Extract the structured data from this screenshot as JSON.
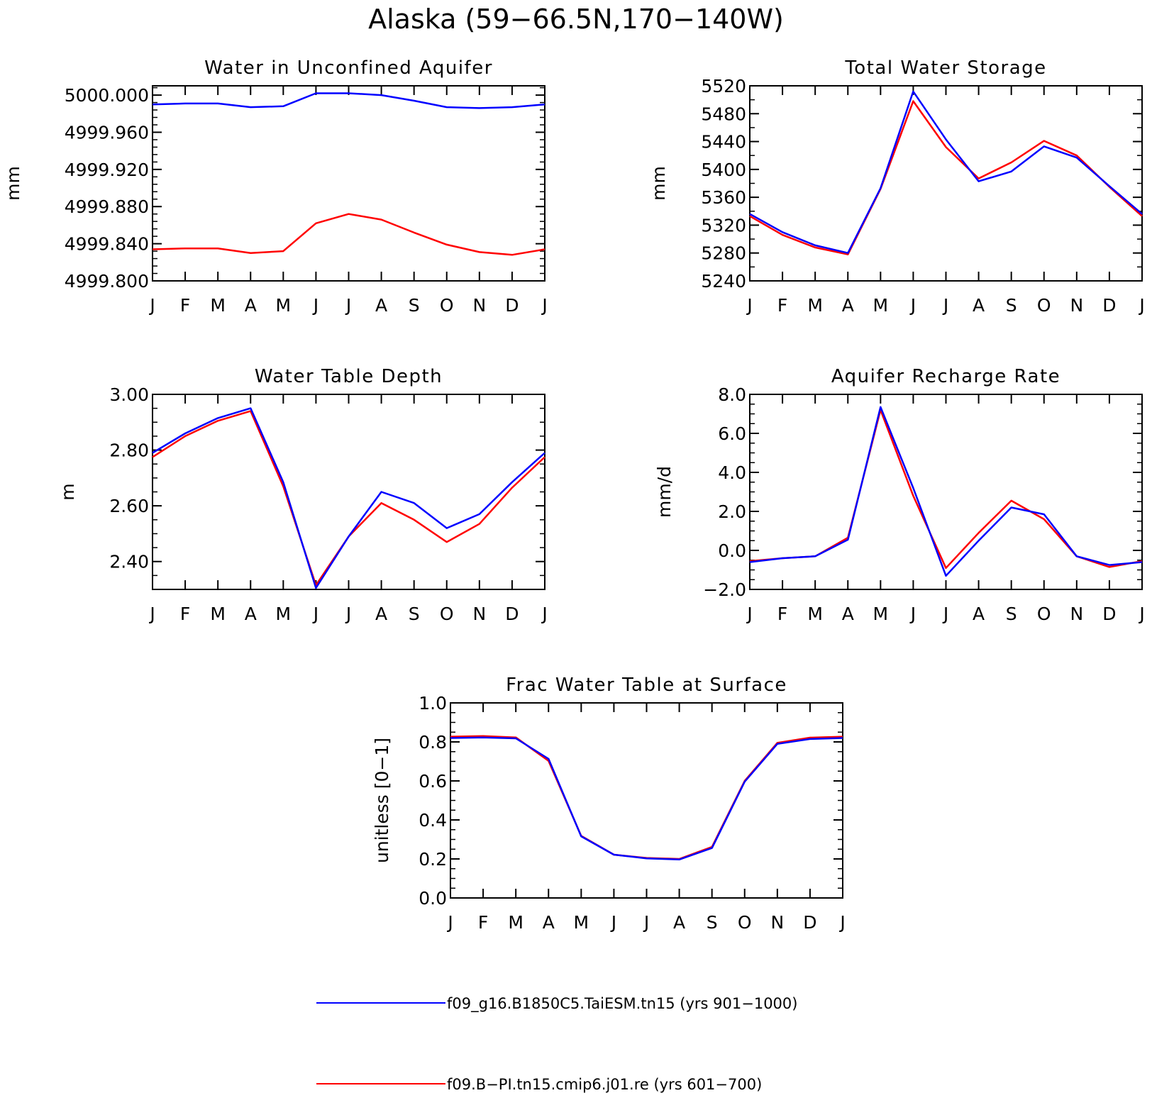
{
  "figure_title": "Alaska (59−66.5N,170−140W)",
  "colors": {
    "series1": "#0000ff",
    "series2": "#ff0000",
    "axes": "#000000"
  },
  "legend": {
    "placement": "bottom-center",
    "entries": [
      {
        "label": "f09_g16.B1850C5.TaiESM.tn15 (yrs 901−1000)",
        "color": "#0000ff"
      },
      {
        "label": "f09.B−PI.tn15.cmip6.j01.re (yrs 601−700)",
        "color": "#ff0000"
      }
    ]
  },
  "chart_data": [
    {
      "type": "line",
      "title": "Water in Unconfined Aquifer",
      "ylabel": "mm",
      "categories": [
        "J",
        "F",
        "M",
        "A",
        "M",
        "J",
        "J",
        "A",
        "S",
        "O",
        "N",
        "D",
        "J"
      ],
      "ylim": [
        4999.8,
        5000.01
      ],
      "yticks": [
        4999.8,
        4999.84,
        4999.88,
        4999.92,
        4999.96,
        5000.0
      ],
      "ytick_labels": [
        "4999.800",
        "4999.840",
        "4999.880",
        "4999.920",
        "4999.960",
        "5000.000"
      ],
      "yminor": 4,
      "series": [
        {
          "color": "#0000ff",
          "values": [
            4999.99,
            4999.991,
            4999.991,
            4999.987,
            4999.988,
            5000.002,
            5000.002,
            5000.0,
            4999.994,
            4999.987,
            4999.986,
            4999.987,
            4999.99
          ]
        },
        {
          "color": "#ff0000",
          "values": [
            4999.834,
            4999.835,
            4999.835,
            4999.83,
            4999.832,
            4999.862,
            4999.872,
            4999.866,
            4999.852,
            4999.839,
            4999.831,
            4999.828,
            4999.834
          ]
        }
      ]
    },
    {
      "type": "line",
      "title": "Total Water Storage",
      "ylabel": "mm",
      "categories": [
        "J",
        "F",
        "M",
        "A",
        "M",
        "J",
        "J",
        "A",
        "S",
        "O",
        "N",
        "D",
        "J"
      ],
      "ylim": [
        5240,
        5520
      ],
      "yticks": [
        5240,
        5280,
        5320,
        5360,
        5400,
        5440,
        5480,
        5520
      ],
      "ytick_labels": [
        "5240",
        "5280",
        "5320",
        "5360",
        "5400",
        "5440",
        "5480",
        "5520"
      ],
      "yminor": 1,
      "series": [
        {
          "color": "#ff0000",
          "values": [
            5333,
            5306,
            5288,
            5278,
            5372,
            5498,
            5432,
            5387,
            5410,
            5441,
            5420,
            5375,
            5333
          ]
        },
        {
          "color": "#0000ff",
          "values": [
            5336,
            5310,
            5291,
            5280,
            5373,
            5512,
            5443,
            5383,
            5397,
            5433,
            5417,
            5376,
            5336
          ]
        }
      ]
    },
    {
      "type": "line",
      "title": "Water Table Depth",
      "ylabel": "m",
      "categories": [
        "J",
        "F",
        "M",
        "A",
        "M",
        "J",
        "J",
        "A",
        "S",
        "O",
        "N",
        "D",
        "J"
      ],
      "ylim": [
        2.3,
        3.0
      ],
      "yticks": [
        2.4,
        2.6,
        2.8,
        3.0
      ],
      "ytick_labels": [
        "2.40",
        "2.60",
        "2.80",
        "3.00"
      ],
      "yminor": 3,
      "series": [
        {
          "color": "#ff0000",
          "values": [
            2.775,
            2.85,
            2.905,
            2.94,
            2.67,
            2.315,
            2.49,
            2.61,
            2.55,
            2.47,
            2.535,
            2.665,
            2.775
          ]
        },
        {
          "color": "#0000ff",
          "values": [
            2.79,
            2.86,
            2.915,
            2.95,
            2.685,
            2.305,
            2.49,
            2.65,
            2.61,
            2.52,
            2.57,
            2.685,
            2.79
          ]
        }
      ]
    },
    {
      "type": "line",
      "title": "Aquifer Recharge Rate",
      "ylabel": "mm/d",
      "categories": [
        "J",
        "F",
        "M",
        "A",
        "M",
        "J",
        "J",
        "A",
        "S",
        "O",
        "N",
        "D",
        "J"
      ],
      "ylim": [
        -2.0,
        8.0
      ],
      "yticks": [
        -2.0,
        0.0,
        2.0,
        4.0,
        6.0,
        8.0
      ],
      "ytick_labels": [
        "−2.0",
        "0.0",
        "2.0",
        "4.0",
        "6.0",
        "8.0"
      ],
      "yminor": 3,
      "series": [
        {
          "color": "#ff0000",
          "values": [
            -0.55,
            -0.4,
            -0.3,
            0.65,
            7.2,
            2.8,
            -0.9,
            0.9,
            2.55,
            1.6,
            -0.3,
            -0.85,
            -0.55
          ]
        },
        {
          "color": "#0000ff",
          "values": [
            -0.6,
            -0.4,
            -0.3,
            0.55,
            7.35,
            3.2,
            -1.3,
            0.5,
            2.2,
            1.85,
            -0.3,
            -0.75,
            -0.6
          ]
        }
      ]
    },
    {
      "type": "line",
      "title": "Frac Water Table at Surface",
      "ylabel": "unitless [0−1]",
      "categories": [
        "J",
        "F",
        "M",
        "A",
        "M",
        "J",
        "J",
        "A",
        "S",
        "O",
        "N",
        "D",
        "J"
      ],
      "ylim": [
        0.0,
        1.0
      ],
      "yticks": [
        0.0,
        0.2,
        0.4,
        0.6,
        0.8,
        1.0
      ],
      "ytick_labels": [
        "0.0",
        "0.2",
        "0.4",
        "0.6",
        "0.8",
        "1.0"
      ],
      "yminor": 3,
      "series": [
        {
          "color": "#ff0000",
          "values": [
            0.827,
            0.83,
            0.823,
            0.703,
            0.318,
            0.222,
            0.205,
            0.2,
            0.262,
            0.6,
            0.795,
            0.822,
            0.827
          ]
        },
        {
          "color": "#0000ff",
          "values": [
            0.82,
            0.823,
            0.818,
            0.713,
            0.316,
            0.222,
            0.203,
            0.197,
            0.256,
            0.596,
            0.79,
            0.815,
            0.82
          ]
        }
      ]
    }
  ]
}
